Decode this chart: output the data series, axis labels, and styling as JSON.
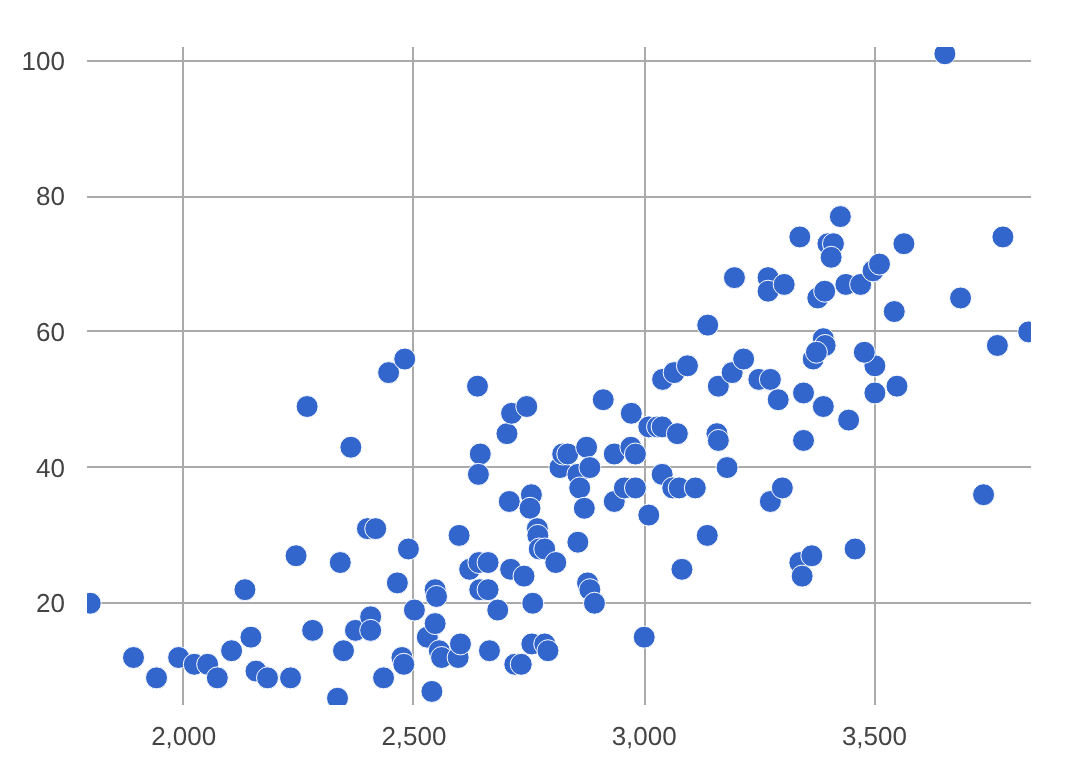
{
  "chart_data": {
    "type": "scatter",
    "color": "#3366cc",
    "marker": "circle",
    "grid": true,
    "xlim": [
      1790,
      3840
    ],
    "ylim": [
      5,
      102
    ],
    "xticks": [
      {
        "value": 2000,
        "label": "2,000"
      },
      {
        "value": 2500,
        "label": "2,500"
      },
      {
        "value": 3000,
        "label": "3,000"
      },
      {
        "value": 3500,
        "label": "3,500"
      }
    ],
    "yticks": [
      20,
      40,
      60,
      80,
      100
    ],
    "x": [
      1797,
      1891,
      1941,
      1989,
      2023,
      2052,
      2073,
      2104,
      2133,
      2146,
      2157,
      2182,
      2232,
      2244,
      2268,
      2280,
      2334,
      2340,
      2347,
      2363,
      2373,
      2399,
      2417,
      2406,
      2406,
      2434,
      2445,
      2480,
      2464,
      2474,
      2478,
      2488,
      2501,
      2539,
      2529,
      2546,
      2546,
      2549,
      2555,
      2560,
      2596,
      2601,
      2598,
      2621,
      2638,
      2641,
      2644,
      2640,
      2643,
      2661,
      2661,
      2664,
      2682,
      2702,
      2707,
      2712,
      2745,
      2710,
      2719,
      2733,
      2739,
      2756,
      2758,
      2755,
      2752,
      2768,
      2769,
      2772,
      2784,
      2791,
      2784,
      2808,
      2856,
      2817,
      2823,
      2834,
      2856,
      2860,
      2870,
      2875,
      2882,
      2877,
      2882,
      2892,
      2911,
      2935,
      2935,
      2957,
      2972,
      2971,
      2981,
      2981,
      3000,
      3010,
      3010,
      3029,
      3039,
      3039,
      3072,
      3062,
      3076,
      3111,
      3082,
      3137,
      3040,
      3065,
      3094,
      3158,
      3161,
      3161,
      3180,
      3191,
      3249,
      3274,
      3291,
      3274,
      3300,
      3346,
      3346,
      3338,
      3343,
      3364,
      3389,
      3444,
      3458,
      3501,
      3501,
      3549,
      3737,
      3653,
      3426,
      3338,
      3399,
      3411,
      3406,
      3564,
      3779,
      3196,
      3269,
      3269,
      3304,
      3377,
      3392,
      3438,
      3470,
      3497,
      3511,
      3543,
      3687,
      3138,
      3389,
      3393,
      3367,
      3374,
      3478,
      3767,
      3835,
      3216
    ],
    "values": [
      20,
      12,
      9,
      12,
      11,
      11,
      9,
      13,
      22,
      15,
      10,
      9,
      9,
      27,
      49,
      16,
      6,
      26,
      13,
      43,
      16,
      31,
      31,
      18,
      16,
      9,
      54,
      56,
      23,
      12,
      11,
      28,
      19,
      7,
      15,
      17,
      22,
      21,
      13,
      12,
      12,
      14,
      30,
      25,
      52,
      26,
      42,
      39,
      22,
      22,
      26,
      13,
      19,
      45,
      35,
      48,
      49,
      25,
      11,
      11,
      24,
      14,
      20,
      36,
      34,
      31,
      30,
      28,
      14,
      13,
      28,
      26,
      29,
      40,
      42,
      42,
      39,
      37,
      34,
      43,
      40,
      23,
      22,
      20,
      50,
      42,
      35,
      37,
      48,
      43,
      42,
      37,
      15,
      33,
      46,
      46,
      46,
      39,
      45,
      37,
      37,
      37,
      25,
      30,
      53,
      54,
      55,
      45,
      44,
      52,
      40,
      54,
      53,
      53,
      50,
      35,
      37,
      51,
      44,
      26,
      24,
      27,
      49,
      47,
      28,
      51,
      55,
      52,
      36,
      101,
      77,
      74,
      73,
      73,
      71,
      73,
      74,
      68,
      68,
      66,
      67,
      65,
      66,
      67,
      67,
      69,
      70,
      63,
      65,
      61,
      59,
      58,
      56,
      57,
      57,
      58,
      60,
      56
    ]
  }
}
